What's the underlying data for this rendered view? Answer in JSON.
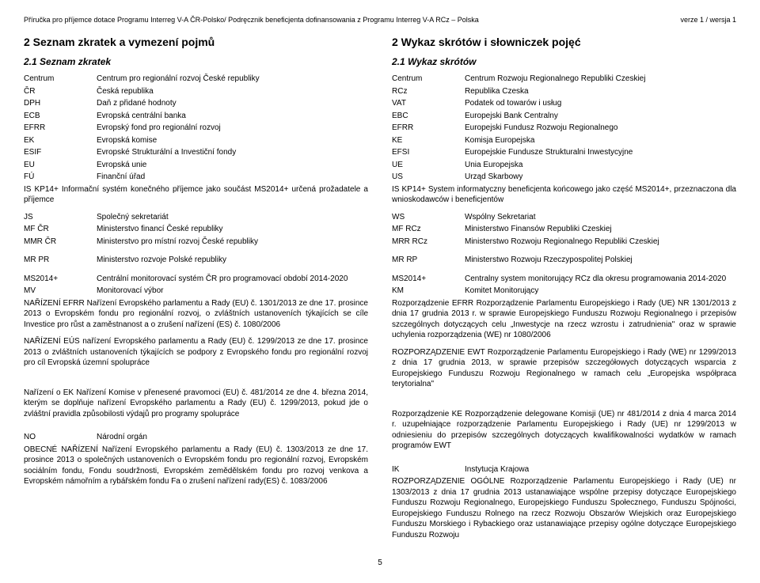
{
  "header": {
    "left": "Příručka pro příjemce dotace Programu Interreg V-A ČR-Polsko/ Podręcznik beneficjenta dofinansowania z Programu Interreg V-A RCz – Polska",
    "right": "verze 1 / wersja 1"
  },
  "left": {
    "title": "2    Seznam zkratek a vymezení pojmů",
    "subtitle": "2.1    Seznam zkratek",
    "block1": [
      {
        "k": "Centrum",
        "v": "Centrum pro regionální rozvoj České republiky"
      },
      {
        "k": "ČR",
        "v": "Česká republika"
      },
      {
        "k": "DPH",
        "v": "Daň z přidané hodnoty"
      },
      {
        "k": "ECB",
        "v": "Evropská centrální banka"
      },
      {
        "k": "EFRR",
        "v": "Evropský fond pro regionální rozvoj"
      },
      {
        "k": "EK",
        "v": "Evropská komise"
      },
      {
        "k": "ESIF",
        "v": "Evropské Strukturální a Investiční fondy"
      },
      {
        "k": "EU",
        "v": "Evropská unie"
      },
      {
        "k": "FÚ",
        "v": "Finanční úřad"
      }
    ],
    "is_kp14": "IS KP14+            Informační   systém   konečného   příjemce   jako   součást   MS2014+   určená prožadatele a příjemce",
    "block2": [
      {
        "k": "JS",
        "v": "Společný sekretariát"
      },
      {
        "k": "MF ČR",
        "v": "Ministerstvo financí České republiky"
      },
      {
        "k": "MMR ČR",
        "v": "Ministerstvo pro místní rozvoj České republiky"
      }
    ],
    "block3": [
      {
        "k": "MR PR",
        "v": "Ministerstvo rozvoje Polské republiky"
      }
    ],
    "block4": [
      {
        "k": "MS2014+",
        "v": "Centrální monitorovací systém ČR pro programovací období 2014-2020"
      },
      {
        "k": "MV",
        "v": "Monitorovací výbor"
      }
    ],
    "para_narizeni_efrr": "NAŘÍZENÍ EFRR    Nařízení Evropského parlamentu a Rady (EU) č. 1301/2013 ze dne 17. prosince 2013 o Evropském fondu pro regionální rozvoj, o zvláštních ustanoveních týkajících se cíle Investice pro růst a zaměstnanost a o zrušení nařízení (ES) č. 1080/2006",
    "para_narizeni_eus": "NAŘÍZENÍ EÚS          nařízení Evropského parlamentu a Rady (EU) č. 1299/2013 ze dne 17. prosince 2013 o zvláštních ustanoveních týkajících se podpory z Evropského fondu pro regionální rozvoj pro cíl Evropská územní spolupráce",
    "para_narizeni_ek": "Nařízení o EK            Nařízení Komise v přenesené pravomoci (EU) č. 481/2014 ze dne 4. března 2014, kterým se doplňuje nařízení Evropského parlamentu a Rady (EU) č. 1299/2013, pokud jde o zvláštní pravidla způsobilosti výdajů pro programy spolupráce",
    "block5": [
      {
        "k": "NO",
        "v": "Národní orgán"
      }
    ],
    "para_obecne": "OBECNÉ NAŘÍZENÍ            Nařízení Evropského parlamentu a Rady (EU) č. 1303/2013 ze dne 17. prosince 2013 o společných ustanoveních o Evropském fondu pro regionální rozvoj, Evropském sociálním fondu, Fondu soudržnosti, Evropském zemědělském fondu pro rozvoj venkova a Evropském námořním a rybářském fondu Fa o zrušení nařízení rady(ES) č. 1083/2006"
  },
  "right": {
    "title": "2    Wykaz skrótów i słowniczek pojęć",
    "subtitle": "2.1    Wykaz skrótów",
    "block1": [
      {
        "k": "Centrum",
        "v": "Centrum Rozwoju Regionalnego Republiki Czeskiej"
      },
      {
        "k": "RCz",
        "v": "Republika Czeska"
      },
      {
        "k": "VAT",
        "v": "Podatek od towarów i usług"
      },
      {
        "k": "EBC",
        "v": "Europejski Bank Centralny"
      },
      {
        "k": "EFRR",
        "v": "Europejski Fundusz Rozwoju Regionalnego"
      },
      {
        "k": "KE",
        "v": "Komisja Europejska"
      },
      {
        "k": "EFSI",
        "v": "Europejskie Fundusze Strukturalni Inwestycyjne"
      },
      {
        "k": "UE",
        "v": "Unia Europejska"
      },
      {
        "k": "US",
        "v": "Urząd Skarbowy"
      }
    ],
    "is_kp14": "IS KP14+      System    informatyczny    beneficjenta    końcowego    jako    część    MS2014+, przeznaczona dla wnioskodawców i beneficjentów",
    "block2": [
      {
        "k": "WS",
        "v": "Wspólny Sekretariat"
      },
      {
        "k": "MF RCz",
        "v": "Ministerstwo Finansów Republiki Czeskiej"
      },
      {
        "k": "MRR RCz",
        "v": "Ministerstwo Rozwoju Regionalnego Republiki Czeskiej"
      }
    ],
    "block3": [
      {
        "k": "MR RP",
        "v": "Ministerstwo Rozwoju Rzeczypospolitej Polskiej"
      }
    ],
    "block4": [
      {
        "k": "MS2014+",
        "v": "Centralny system monitorujący RCz dla okresu programowania 2014-2020"
      },
      {
        "k": "KM",
        "v": "Komitet Monitorujący"
      }
    ],
    "para_rozp_efrr": "Rozporządzenie EFRR    Rozporządzenie Parlamentu Europejskiego i Rady (UE) NR 1301/2013 z dnia 17 grudnia 2013 r. w sprawie Europejskiego Funduszu Rozwoju Regionalnego i przepisów szczególnych dotyczących celu „Inwestycje na rzecz wzrostu i zatrudnienia\" oraz w sprawie uchylenia rozporządzenia (WE) nr 1080/2006",
    "para_rozp_ewt": "ROZPORZĄDZENIE EWT        Rozporządzenie Parlamentu Europejskiego i Rady (WE) nr 1299/2013 z dnia 17 grudnia 2013, w sprawie przepisów szczegółowych dotyczących wsparcia z Europejskiego Funduszu Rozwoju Regionalnego w ramach celu „Europejska współpraca terytorialna\"",
    "para_rozp_ke": "Rozporządzenie KE    Rozporządzenie delegowane Komisji (UE) nr 481/2014 z dnia 4 marca 2014 r. uzupełniające rozporządzenie Parlamentu Europejskiego i Rady (UE) nr 1299/2013 w odniesieniu do przepisów szczególnych dotyczących kwalifikowalności wydatków w ramach programów EWT",
    "block5": [
      {
        "k": "IK",
        "v": "Instytucja Krajowa"
      }
    ],
    "para_ogolne": "ROZPORZĄDZENIE OGÓLNE    Rozporządzenie Parlamentu Europejskiego i Rady (UE) nr 1303/2013 z dnia 17 grudnia 2013 ustanawiające wspólne przepisy dotyczące Europejskiego Funduszu Rozwoju Regionalnego, Europejskiego Funduszu Społecznego, Funduszu Spójności, Europejskiego Funduszu Rolnego na rzecz Rozwoju Obszarów Wiejskich oraz Europejskiego Funduszu Morskiego i Rybackiego oraz ustanawiające przepisy ogólne dotyczące Europejskiego Funduszu Rozwoju"
  },
  "pagenum": "5"
}
